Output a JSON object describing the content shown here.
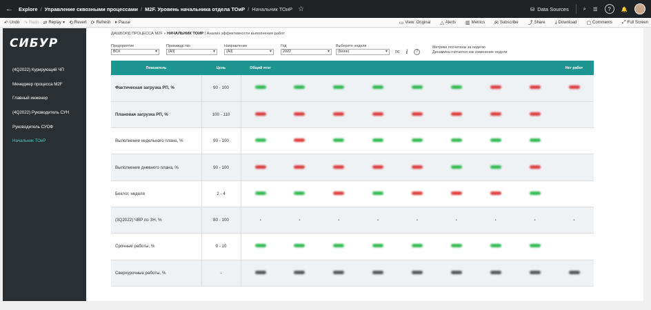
{
  "topbar": {
    "crumbs": [
      "Explore",
      "Управление сквозными процессами",
      "M2F. Уровень начальника отдела ТОиР",
      "Начальник ТОиР"
    ],
    "data_sources": "Data Sources"
  },
  "toolbar": {
    "left": [
      "Undo",
      "Redo",
      "Replay",
      "Revert",
      "Refresh",
      "Pause"
    ],
    "right": [
      "View: Original",
      "Alerts",
      "Metrics",
      "Subscribe",
      "Share",
      "Download",
      "Comments",
      "Full Screen"
    ]
  },
  "sidebar": {
    "logo": "СИБУР",
    "items": [
      {
        "label": "(4Q2022) Курирующий ЧП"
      },
      {
        "label": "Менеджер процесса M2F"
      },
      {
        "label": "Главный инженер"
      },
      {
        "label": "(4Q2022) Руководитель СУН"
      },
      {
        "label": "Руководитель СУОФ"
      },
      {
        "label": "Начальник ТОиР"
      }
    ]
  },
  "main": {
    "title_prefix": "ДАШБОРД ПРОЦЕССА M2F »",
    "title_bold": "НАЧАЛЬНИК ТОИР",
    "title_suffix": "| Анализ эффективности выполнения работ",
    "filters": [
      {
        "label": "Предприятие",
        "value": "ВСК"
      },
      {
        "label": "Производство",
        "value": "(All)"
      },
      {
        "label": "Направление",
        "value": "(All)"
      },
      {
        "label": "Год",
        "value": "2022"
      },
      {
        "label": "Выберите недели",
        "value": "(None)"
      }
    ],
    "info_line1": "Метрики посчитаны за неделю",
    "info_line2": "Динамика считается как изменение недели",
    "table": {
      "headers": {
        "name": "Показатель",
        "target": "Цель",
        "total": "Общий итог",
        "last": "Нет работ"
      },
      "rows": [
        {
          "name": "Фактическая загрузка РП, %",
          "target": "90 - 100",
          "bold": true,
          "cells": [
            "g",
            "g",
            "g",
            "g",
            "g",
            "g",
            "r",
            "r",
            "r"
          ]
        },
        {
          "name": "Плановая загрузка РП, %",
          "target": "100 - 110",
          "bold": true,
          "cells": [
            "r",
            "r",
            "r",
            "r",
            "r",
            "r",
            "r",
            "r",
            ""
          ]
        },
        {
          "name": "Выполнение недельного плана, %",
          "target": "90 - 100",
          "bold": false,
          "cells": [
            "g",
            "r",
            "g",
            "g",
            "g",
            "g",
            "g",
            "g",
            ""
          ]
        },
        {
          "name": "Выполнение дневного плана, %",
          "target": "90 - 100",
          "bold": false,
          "cells": [
            "r",
            "r",
            "r",
            "r",
            "r",
            "g",
            "g",
            "r",
            ""
          ]
        },
        {
          "name": "Беклог, неделя",
          "target": "2 - 4",
          "bold": false,
          "cells": [
            "g",
            "g",
            "r",
            "g",
            "r",
            "r",
            "r",
            "g",
            ""
          ]
        },
        {
          "name": "(3Q2022) ЧВР по ЗН, %",
          "target": "80 - 100",
          "bold": false,
          "cells": [
            "-",
            "-",
            "-",
            "-",
            "-",
            "-",
            "-",
            "-",
            "-"
          ]
        },
        {
          "name": "Срочные работы, %",
          "target": "0 - 10",
          "bold": false,
          "cells": [
            "g",
            "g",
            "g",
            "g",
            "g",
            "g",
            "g",
            "g",
            ""
          ]
        },
        {
          "name": "Сверхурочные работы, %",
          "target": "-",
          "bold": false,
          "cells": [
            "k",
            "k",
            "k",
            "k",
            "k",
            "k",
            "k",
            "k",
            "k"
          ]
        }
      ]
    }
  }
}
